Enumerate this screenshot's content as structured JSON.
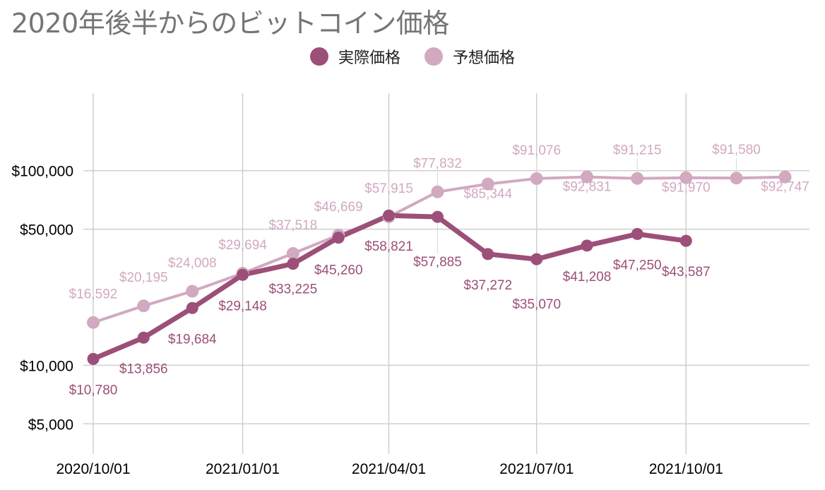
{
  "title": "2020年後半からのビットコイン価格",
  "colors": {
    "actual": "#9c4f78",
    "forecast": "#d1a9c1",
    "grid": "#cfcfcf",
    "leader": "#dddddd"
  },
  "chart_data": {
    "type": "line",
    "title": "2020年後半からのビットコイン価格",
    "xlabel": "",
    "ylabel": "",
    "y_scale": "log",
    "ylim": [
      3500,
      250000
    ],
    "x_range": [
      "2020-10-01",
      "2021-12-16"
    ],
    "y_ticks": [
      {
        "value": 5000,
        "label": "$5,000"
      },
      {
        "value": 10000,
        "label": "$10,000"
      },
      {
        "value": 50000,
        "label": "$50,000"
      },
      {
        "value": 100000,
        "label": "$100,000"
      }
    ],
    "x_ticks": [
      {
        "date": "2020-10-01",
        "label": "2020/10/01"
      },
      {
        "date": "2021-01-01",
        "label": "2021/01/01"
      },
      {
        "date": "2021-04-01",
        "label": "2021/04/01"
      },
      {
        "date": "2021-07-01",
        "label": "2021/07/01"
      },
      {
        "date": "2021-10-01",
        "label": "2021/10/01"
      }
    ],
    "grid": true,
    "legend_position": "top",
    "series": [
      {
        "name": "実際価格",
        "color": "#9c4f78",
        "points": [
          {
            "x": "2020-10-01",
            "y": 10780,
            "label": "$10,780"
          },
          {
            "x": "2020-11-01",
            "y": 13856,
            "label": "$13,856"
          },
          {
            "x": "2020-12-01",
            "y": 19684,
            "label": "$19,684"
          },
          {
            "x": "2021-01-01",
            "y": 29148,
            "label": "$29,148"
          },
          {
            "x": "2021-02-01",
            "y": 33225,
            "label": "$33,225"
          },
          {
            "x": "2021-03-01",
            "y": 45260,
            "label": "$45,260"
          },
          {
            "x": "2021-04-01",
            "y": 58821,
            "label": "$58,821"
          },
          {
            "x": "2021-05-01",
            "y": 57885,
            "label": "$57,885"
          },
          {
            "x": "2021-06-01",
            "y": 37272,
            "label": "$37,272"
          },
          {
            "x": "2021-07-01",
            "y": 35070,
            "label": "$35,070"
          },
          {
            "x": "2021-08-01",
            "y": 41208,
            "label": "$41,208"
          },
          {
            "x": "2021-09-01",
            "y": 47250,
            "label": "$47,250"
          },
          {
            "x": "2021-10-01",
            "y": 43587,
            "label": "$43,587"
          }
        ]
      },
      {
        "name": "予想価格",
        "color": "#d1a9c1",
        "points": [
          {
            "x": "2020-10-01",
            "y": 16592,
            "label": "$16,592"
          },
          {
            "x": "2020-11-01",
            "y": 20195,
            "label": "$20,195"
          },
          {
            "x": "2020-12-01",
            "y": 24008,
            "label": "$24,008"
          },
          {
            "x": "2021-01-01",
            "y": 29694,
            "label": "$29,694"
          },
          {
            "x": "2021-02-01",
            "y": 37518,
            "label": "$37,518"
          },
          {
            "x": "2021-03-01",
            "y": 46669,
            "label": "$46,669"
          },
          {
            "x": "2021-04-01",
            "y": 57915,
            "label": "$57,915"
          },
          {
            "x": "2021-05-01",
            "y": 77832,
            "label": "$77,832"
          },
          {
            "x": "2021-06-01",
            "y": 85344,
            "label": "$85,344"
          },
          {
            "x": "2021-07-01",
            "y": 91076,
            "label": "$91,076"
          },
          {
            "x": "2021-08-01",
            "y": 92831,
            "label": "$92,831"
          },
          {
            "x": "2021-09-01",
            "y": 91215,
            "label": "$91,215"
          },
          {
            "x": "2021-10-01",
            "y": 91970,
            "label": "$91,970"
          },
          {
            "x": "2021-11-01",
            "y": 91580,
            "label": "$91,580"
          },
          {
            "x": "2021-12-01",
            "y": 92747,
            "label": "$92,747"
          }
        ]
      }
    ]
  }
}
